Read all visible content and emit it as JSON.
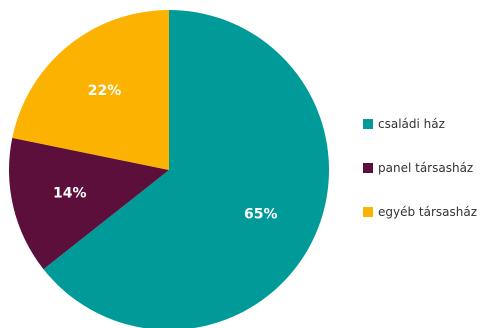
{
  "chart_data": {
    "type": "pie",
    "categories": [
      "családi ház",
      "panel társasház",
      "egyéb társasház"
    ],
    "values": [
      65,
      14,
      22
    ],
    "labels": [
      "65%",
      "14%",
      "22%"
    ],
    "colors": [
      "#009a99",
      "#5c0f3b",
      "#fcb200"
    ],
    "legend_position": "right"
  }
}
